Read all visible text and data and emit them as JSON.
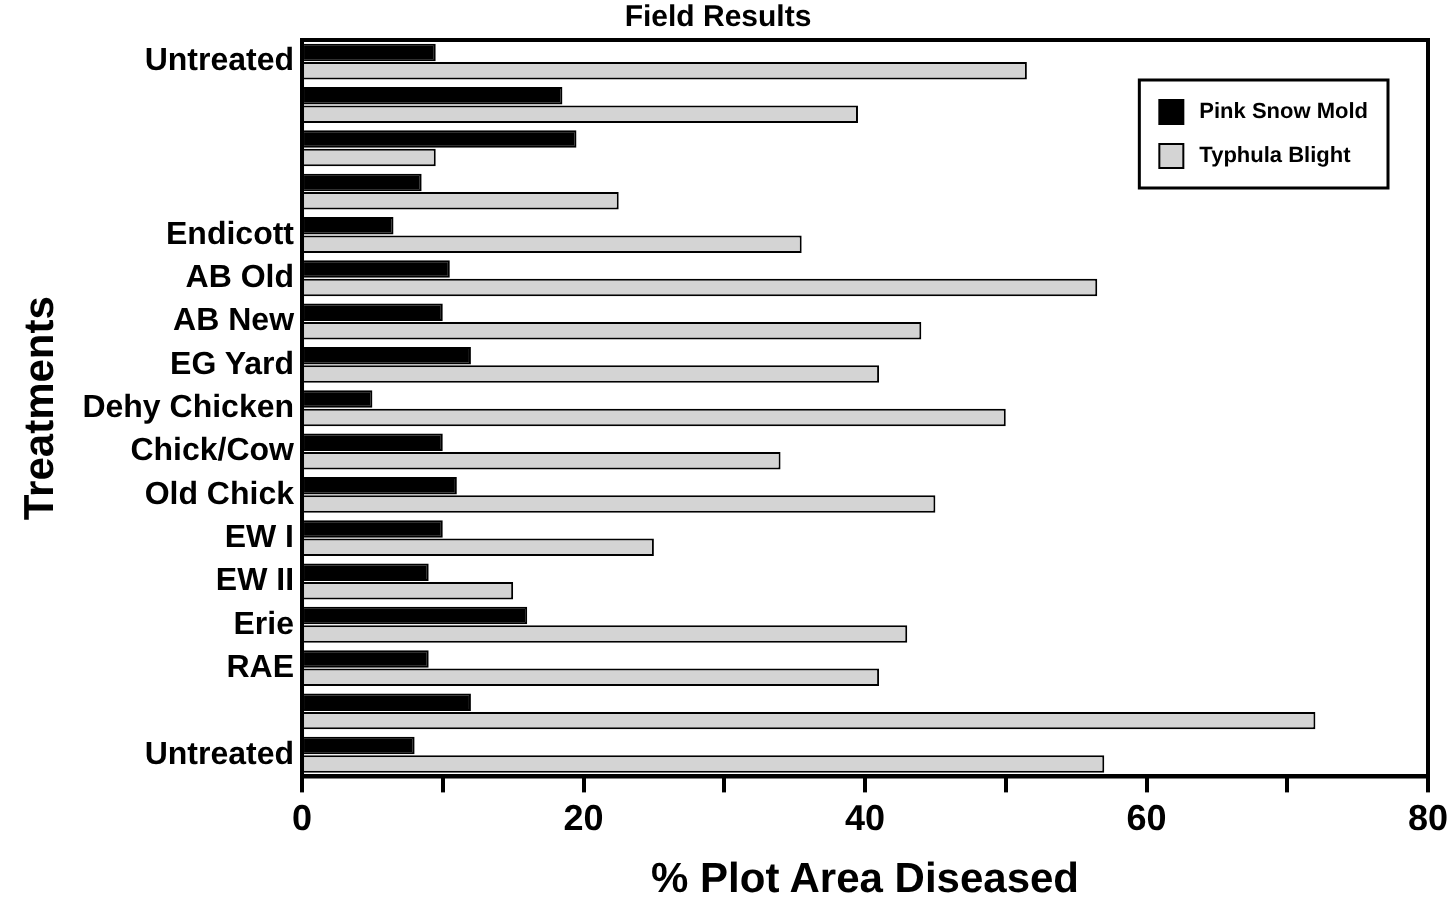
{
  "chart_data": {
    "type": "bar",
    "orientation": "horizontal",
    "title": "Field Results",
    "xlabel": "% Plot Area Diseased",
    "ylabel": "Treatments",
    "categories": [
      "Untreated",
      null,
      null,
      null,
      "Endicott",
      "AB Old",
      "AB New",
      "EG Yard",
      "Dehy Chicken",
      "Chick/Cow",
      "Old Chick",
      "EW I",
      "EW II",
      "Erie",
      "RAE",
      null,
      "Untreated"
    ],
    "series": [
      {
        "name": "Pink Snow Mold",
        "color": "#000000",
        "values": [
          9.5,
          18.5,
          19.5,
          8.5,
          6.5,
          10.5,
          10,
          12,
          5,
          10,
          11,
          10,
          9,
          16,
          9,
          12,
          8
        ]
      },
      {
        "name": "Typhula Blight",
        "color": "#d4d4d4",
        "values": [
          51.5,
          39.5,
          9.5,
          22.5,
          35.5,
          56.5,
          44,
          41,
          50,
          34,
          45,
          25,
          15,
          43,
          41,
          72,
          57
        ]
      }
    ],
    "xlim": [
      0,
      80
    ],
    "xticks": [
      0,
      {
        "value": 10,
        "label": null
      },
      20,
      {
        "value": 30,
        "label": null
      },
      40,
      {
        "value": 50,
        "label": null
      },
      60,
      {
        "value": 70,
        "label": null
      },
      80
    ],
    "legend": "top right",
    "grid": false
  }
}
